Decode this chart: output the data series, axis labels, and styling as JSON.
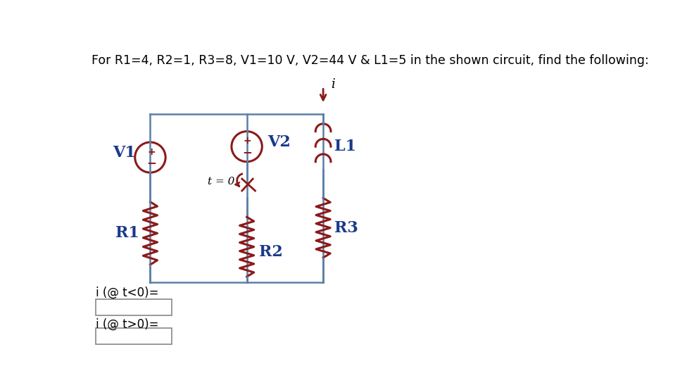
{
  "title": "For R1=4, R2=1, R3=8, V1=10 V, V2=44 V & L1=5 in the shown circuit, find the following:",
  "title_fontsize": 12.5,
  "title_color": "#000000",
  "background_color": "#ffffff",
  "wire_color": "#5b7fa6",
  "component_color": "#8B1A1A",
  "label_color": "#1a3a8a",
  "arrow_color": "#8B1A1A",
  "text_color": "#000000",
  "label_V1": "V1",
  "label_V2": "V2",
  "label_R1": "R1",
  "label_R2": "R2",
  "label_R3": "R3",
  "label_L1": "L1",
  "label_t0": "t = 0",
  "label_i": "i",
  "label_i_lt0": "i (@ t<0)=",
  "label_i_gt0": "i (@ t>0)="
}
